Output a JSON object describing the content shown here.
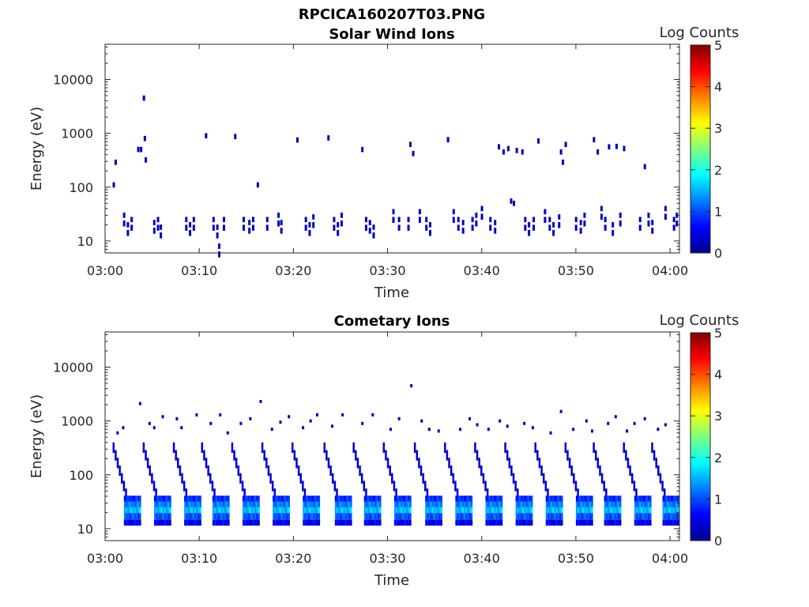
{
  "figure_title": "RPCICA160207T03.PNG",
  "chart_data": [
    {
      "type": "heatmap",
      "title": "Solar Wind Ions",
      "xlabel": "Time",
      "ylabel": "Energy (eV)",
      "x_ticks": [
        "03:00",
        "03:10",
        "03:20",
        "03:30",
        "03:40",
        "03:50",
        "04:00"
      ],
      "y_ticks": [
        "10",
        "100",
        "1000",
        "10000"
      ],
      "y_scale": "log",
      "ylim": [
        6,
        45000
      ],
      "xlim_minutes": [
        0,
        61
      ],
      "colorbar": {
        "label": "Log Counts",
        "ticks": [
          "0",
          "1",
          "2",
          "3",
          "4",
          "5"
        ],
        "range": [
          0,
          5
        ],
        "colormap": "jet"
      },
      "cells": [
        [
          0.8,
          110,
          0.2
        ],
        [
          1.0,
          290,
          0.2
        ],
        [
          1.9,
          30,
          0.3
        ],
        [
          2.3,
          20,
          0.3
        ],
        [
          2.7,
          25,
          0.3
        ],
        [
          3.4,
          500,
          0.2
        ],
        [
          3.7,
          500,
          0.2
        ],
        [
          4.0,
          4500,
          0.2
        ],
        [
          4.1,
          800,
          0.2
        ],
        [
          4.2,
          320,
          0.2
        ],
        [
          5.1,
          22,
          0.3
        ],
        [
          5.5,
          25,
          0.3
        ],
        [
          5.8,
          18,
          0.3
        ],
        [
          8.5,
          25,
          0.3
        ],
        [
          8.9,
          20,
          0.3
        ],
        [
          9.3,
          25,
          0.3
        ],
        [
          10.6,
          900,
          0.2
        ],
        [
          11.4,
          25,
          0.3
        ],
        [
          11.8,
          18,
          0.3
        ],
        [
          12.0,
          8,
          0.3
        ],
        [
          12.5,
          25,
          0.3
        ],
        [
          13.7,
          870,
          0.2
        ],
        [
          14.6,
          25,
          0.3
        ],
        [
          15.2,
          22,
          0.3
        ],
        [
          15.6,
          25,
          0.3
        ],
        [
          16.1,
          110,
          0.2
        ],
        [
          17.1,
          25,
          0.3
        ],
        [
          18.3,
          30,
          0.3
        ],
        [
          18.6,
          22,
          0.3
        ],
        [
          20.3,
          750,
          0.2
        ],
        [
          21.2,
          25,
          0.3
        ],
        [
          21.6,
          20,
          0.3
        ],
        [
          22.0,
          28,
          0.3
        ],
        [
          23.6,
          820,
          0.2
        ],
        [
          24.2,
          25,
          0.3
        ],
        [
          24.6,
          20,
          0.3
        ],
        [
          25.0,
          30,
          0.3
        ],
        [
          27.2,
          500,
          0.2
        ],
        [
          27.6,
          25,
          0.3
        ],
        [
          28.0,
          22,
          0.3
        ],
        [
          28.4,
          18,
          0.3
        ],
        [
          30.5,
          35,
          0.3
        ],
        [
          31.1,
          25,
          0.3
        ],
        [
          32.1,
          25,
          0.3
        ],
        [
          32.3,
          620,
          0.2
        ],
        [
          32.6,
          420,
          0.2
        ],
        [
          33.3,
          35,
          0.3
        ],
        [
          34.0,
          25,
          0.3
        ],
        [
          34.4,
          20,
          0.3
        ],
        [
          36.3,
          760,
          0.2
        ],
        [
          36.9,
          35,
          0.3
        ],
        [
          37.4,
          25,
          0.3
        ],
        [
          37.9,
          22,
          0.3
        ],
        [
          38.9,
          25,
          0.3
        ],
        [
          39.3,
          30,
          0.3
        ],
        [
          39.9,
          40,
          0.2
        ],
        [
          40.8,
          25,
          0.3
        ],
        [
          41.3,
          22,
          0.3
        ],
        [
          41.7,
          560,
          0.2
        ],
        [
          42.2,
          450,
          0.2
        ],
        [
          42.7,
          520,
          0.2
        ],
        [
          43.0,
          55,
          0.3
        ],
        [
          43.3,
          50,
          0.2
        ],
        [
          43.6,
          480,
          0.2
        ],
        [
          44.2,
          450,
          0.2
        ],
        [
          44.5,
          25,
          0.3
        ],
        [
          44.9,
          20,
          0.3
        ],
        [
          45.4,
          25,
          0.3
        ],
        [
          45.9,
          720,
          0.2
        ],
        [
          46.6,
          35,
          0.3
        ],
        [
          47.1,
          25,
          0.3
        ],
        [
          47.5,
          20,
          0.3
        ],
        [
          48.1,
          28,
          0.3
        ],
        [
          48.3,
          450,
          0.2
        ],
        [
          48.5,
          290,
          0.2
        ],
        [
          48.8,
          620,
          0.2
        ],
        [
          49.9,
          25,
          0.3
        ],
        [
          50.4,
          22,
          0.3
        ],
        [
          50.8,
          30,
          0.3
        ],
        [
          51.8,
          760,
          0.2
        ],
        [
          52.2,
          450,
          0.2
        ],
        [
          52.6,
          40,
          0.3
        ],
        [
          53.0,
          25,
          0.3
        ],
        [
          53.4,
          560,
          0.2
        ],
        [
          53.8,
          20,
          0.3
        ],
        [
          54.2,
          570,
          0.2
        ],
        [
          54.6,
          30,
          0.3
        ],
        [
          55.0,
          520,
          0.2
        ],
        [
          56.7,
          25,
          0.3
        ],
        [
          57.2,
          240,
          0.2
        ],
        [
          57.6,
          30,
          0.3
        ],
        [
          58.0,
          22,
          0.3
        ],
        [
          59.4,
          40,
          0.3
        ],
        [
          60.3,
          25,
          0.3
        ],
        [
          60.6,
          30,
          0.3
        ]
      ]
    },
    {
      "type": "heatmap",
      "title": "Cometary Ions",
      "xlabel": "Time",
      "ylabel": "Energy (eV)",
      "x_ticks": [
        "03:00",
        "03:10",
        "03:20",
        "03:30",
        "03:40",
        "03:50",
        "04:00"
      ],
      "y_ticks": [
        "10",
        "100",
        "1000",
        "10000"
      ],
      "y_scale": "log",
      "ylim": [
        6,
        45000
      ],
      "xlim_minutes": [
        0,
        61
      ],
      "colorbar": {
        "label": "Log Counts",
        "ticks": [
          "0",
          "1",
          "2",
          "3",
          "4",
          "5"
        ],
        "range": [
          0,
          5
        ],
        "colormap": "jet"
      },
      "bursts_start_minutes": [
        0.8,
        4.0,
        7.2,
        10.2,
        13.4,
        16.6,
        19.8,
        23.2,
        26.3,
        29.5,
        32.8,
        36.0,
        39.2,
        42.4,
        45.6,
        48.8,
        51.8,
        55.0,
        58.0
      ],
      "scattered_points": [
        [
          1.2,
          600
        ],
        [
          1.8,
          750
        ],
        [
          3.6,
          2100
        ],
        [
          4.6,
          900
        ],
        [
          5.1,
          750
        ],
        [
          6.0,
          1200
        ],
        [
          7.5,
          1100
        ],
        [
          8.0,
          750
        ],
        [
          9.6,
          1300
        ],
        [
          11.1,
          900
        ],
        [
          12.1,
          1300
        ],
        [
          12.9,
          600
        ],
        [
          14.3,
          900
        ],
        [
          15.3,
          1100
        ],
        [
          16.4,
          2300
        ],
        [
          17.6,
          700
        ],
        [
          18.5,
          950
        ],
        [
          19.4,
          1200
        ],
        [
          20.9,
          750
        ],
        [
          21.7,
          1000
        ],
        [
          22.4,
          1300
        ],
        [
          24.0,
          800
        ],
        [
          25.1,
          1300
        ],
        [
          27.2,
          900
        ],
        [
          28.3,
          1300
        ],
        [
          30.2,
          700
        ],
        [
          31.1,
          1100
        ],
        [
          32.4,
          4500
        ],
        [
          33.5,
          1000
        ],
        [
          34.3,
          700
        ],
        [
          35.3,
          650
        ],
        [
          37.6,
          700
        ],
        [
          38.6,
          1100
        ],
        [
          39.4,
          850
        ],
        [
          40.6,
          700
        ],
        [
          41.8,
          1000
        ],
        [
          42.6,
          800
        ],
        [
          44.4,
          900
        ],
        [
          45.3,
          750
        ],
        [
          47.2,
          600
        ],
        [
          48.3,
          1500
        ],
        [
          49.6,
          700
        ],
        [
          51.0,
          1000
        ],
        [
          51.6,
          650
        ],
        [
          53.3,
          900
        ],
        [
          54.1,
          1200
        ],
        [
          55.3,
          650
        ],
        [
          56.1,
          900
        ],
        [
          57.2,
          1100
        ],
        [
          58.6,
          700
        ],
        [
          59.4,
          850
        ]
      ]
    }
  ]
}
